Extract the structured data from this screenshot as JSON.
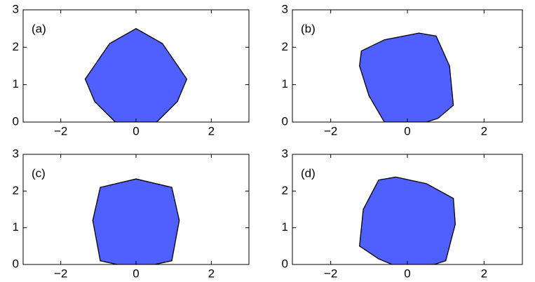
{
  "chart_data": [
    {
      "type": "fill",
      "label": "(a)",
      "color": "#5060ff",
      "x": [
        0,
        0.7,
        1.35,
        1.1,
        0.55,
        -0.55,
        -1.1,
        -1.35,
        -0.7
      ],
      "y": [
        2.5,
        2.1,
        1.15,
        0.55,
        0,
        0,
        0.55,
        1.15,
        2.1
      ],
      "xlim": [
        -3,
        3
      ],
      "ylim": [
        0,
        3
      ],
      "xticks": [
        {
          "value": -2,
          "label": "−2"
        },
        0,
        2
      ],
      "yticks": [
        0,
        1,
        2,
        3
      ]
    },
    {
      "type": "fill",
      "label": "(b)",
      "color": "#5060ff",
      "x": [
        -1.2,
        -0.6,
        0.3,
        0.75,
        1.1,
        1.2,
        0.8,
        0.5,
        -0.6,
        -1.0,
        -1.25
      ],
      "y": [
        1.9,
        2.2,
        2.38,
        2.3,
        1.5,
        0.45,
        0.1,
        0,
        0,
        0.7,
        1.5
      ],
      "xlim": [
        -3,
        3
      ],
      "ylim": [
        0,
        3
      ],
      "xticks": [
        {
          "value": -2,
          "label": "−2"
        },
        0,
        2
      ],
      "yticks": [
        0,
        1,
        2,
        3
      ]
    },
    {
      "type": "fill",
      "label": "(c)",
      "color": "#5060ff",
      "x": [
        -0.95,
        0,
        0.95,
        1.15,
        0.95,
        0.5,
        -0.5,
        -0.95,
        -1.15
      ],
      "y": [
        2.1,
        2.33,
        2.1,
        1.2,
        0.1,
        0,
        0,
        0.1,
        1.2
      ],
      "xlim": [
        -3,
        3
      ],
      "ylim": [
        0,
        3
      ],
      "xticks": [
        {
          "value": -2,
          "label": "−2"
        },
        0,
        2
      ],
      "yticks": [
        0,
        1,
        2,
        3
      ]
    },
    {
      "type": "fill",
      "label": "(d)",
      "color": "#5060ff",
      "x": [
        -0.75,
        -0.3,
        0.5,
        1.2,
        1.25,
        1.0,
        0.7,
        -0.4,
        -0.75,
        -1.25,
        -1.15
      ],
      "y": [
        2.3,
        2.38,
        2.2,
        1.8,
        1.1,
        0.1,
        0,
        0,
        0.15,
        0.5,
        1.5
      ],
      "xlim": [
        -3,
        3
      ],
      "ylim": [
        0,
        3
      ],
      "xticks": [
        {
          "value": -2,
          "label": "−2"
        },
        0,
        2
      ],
      "yticks": [
        0,
        1,
        2,
        3
      ]
    }
  ]
}
